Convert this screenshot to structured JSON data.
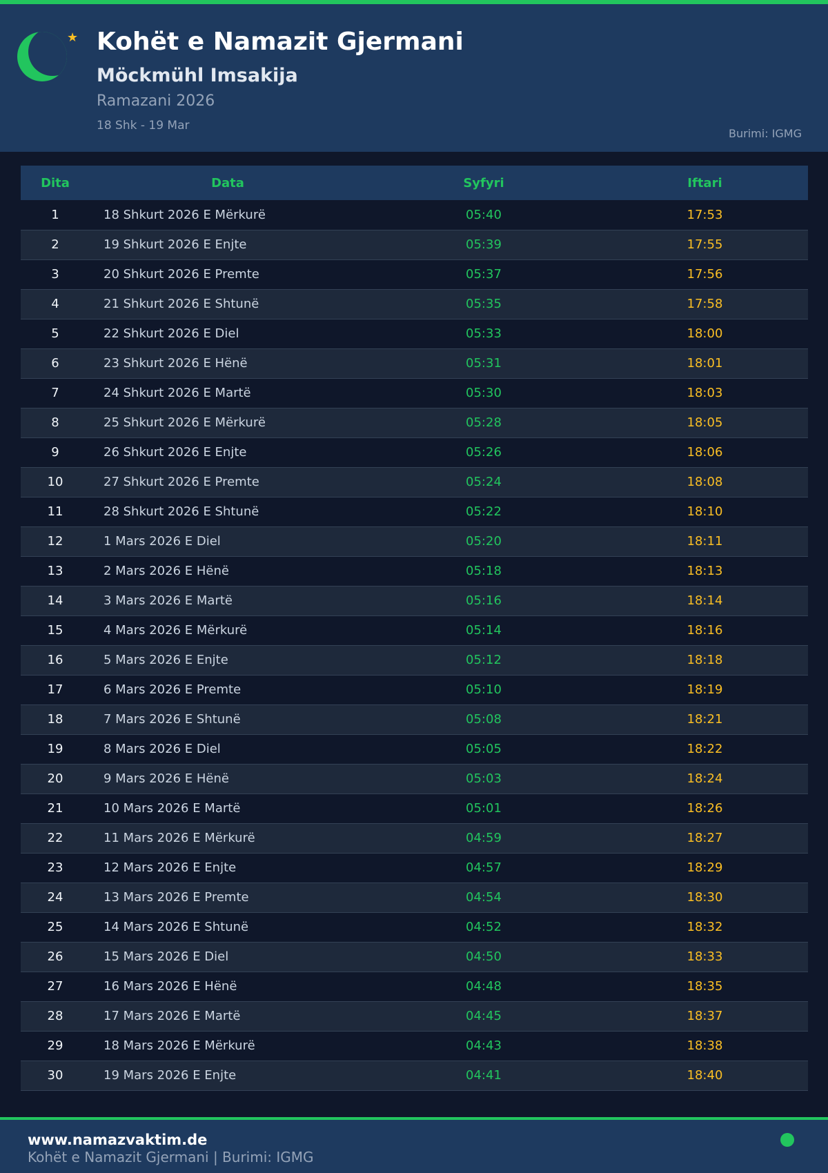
{
  "header": {
    "title": "Kohët e Namazit Gjermani",
    "subtitle": "Möckmühl Imsakija",
    "ramadan": "Ramazani 2026",
    "range": "18 Shk - 19 Mar",
    "source": "Burimi: IGMG"
  },
  "table": {
    "headers": [
      "Dita",
      "Data",
      "Syfyri",
      "Iftari"
    ],
    "rows": [
      [
        "1",
        "18 Shkurt 2026 E Mërkurë",
        "05:40",
        "17:53"
      ],
      [
        "2",
        "19 Shkurt 2026 E Enjte",
        "05:39",
        "17:55"
      ],
      [
        "3",
        "20 Shkurt 2026 E Premte",
        "05:37",
        "17:56"
      ],
      [
        "4",
        "21 Shkurt 2026 E Shtunë",
        "05:35",
        "17:58"
      ],
      [
        "5",
        "22 Shkurt 2026 E Diel",
        "05:33",
        "18:00"
      ],
      [
        "6",
        "23 Shkurt 2026 E Hënë",
        "05:31",
        "18:01"
      ],
      [
        "7",
        "24 Shkurt 2026 E Martë",
        "05:30",
        "18:03"
      ],
      [
        "8",
        "25 Shkurt 2026 E Mërkurë",
        "05:28",
        "18:05"
      ],
      [
        "9",
        "26 Shkurt 2026 E Enjte",
        "05:26",
        "18:06"
      ],
      [
        "10",
        "27 Shkurt 2026 E Premte",
        "05:24",
        "18:08"
      ],
      [
        "11",
        "28 Shkurt 2026 E Shtunë",
        "05:22",
        "18:10"
      ],
      [
        "12",
        "1 Mars 2026 E Diel",
        "05:20",
        "18:11"
      ],
      [
        "13",
        "2 Mars 2026 E Hënë",
        "05:18",
        "18:13"
      ],
      [
        "14",
        "3 Mars 2026 E Martë",
        "05:16",
        "18:14"
      ],
      [
        "15",
        "4 Mars 2026 E Mërkurë",
        "05:14",
        "18:16"
      ],
      [
        "16",
        "5 Mars 2026 E Enjte",
        "05:12",
        "18:18"
      ],
      [
        "17",
        "6 Mars 2026 E Premte",
        "05:10",
        "18:19"
      ],
      [
        "18",
        "7 Mars 2026 E Shtunë",
        "05:08",
        "18:21"
      ],
      [
        "19",
        "8 Mars 2026 E Diel",
        "05:05",
        "18:22"
      ],
      [
        "20",
        "9 Mars 2026 E Hënë",
        "05:03",
        "18:24"
      ],
      [
        "21",
        "10 Mars 2026 E Martë",
        "05:01",
        "18:26"
      ],
      [
        "22",
        "11 Mars 2026 E Mërkurë",
        "04:59",
        "18:27"
      ],
      [
        "23",
        "12 Mars 2026 E Enjte",
        "04:57",
        "18:29"
      ],
      [
        "24",
        "13 Mars 2026 E Premte",
        "04:54",
        "18:30"
      ],
      [
        "25",
        "14 Mars 2026 E Shtunë",
        "04:52",
        "18:32"
      ],
      [
        "26",
        "15 Mars 2026 E Diel",
        "04:50",
        "18:33"
      ],
      [
        "27",
        "16 Mars 2026 E Hënë",
        "04:48",
        "18:35"
      ],
      [
        "28",
        "17 Mars 2026 E Martë",
        "04:45",
        "18:37"
      ],
      [
        "29",
        "18 Mars 2026 E Mërkurë",
        "04:43",
        "18:38"
      ],
      [
        "30",
        "19 Mars 2026 E Enjte",
        "04:41",
        "18:40"
      ]
    ]
  },
  "footer": {
    "site": "www.namazvaktim.de",
    "text": "Kohët e Namazit Gjermani | Burimi: IGMG"
  },
  "colors": {
    "accent": "#22c55e",
    "iftar": "#fbbf24",
    "header_bg": "#1e3a5f",
    "page_bg": "#0f172a"
  }
}
